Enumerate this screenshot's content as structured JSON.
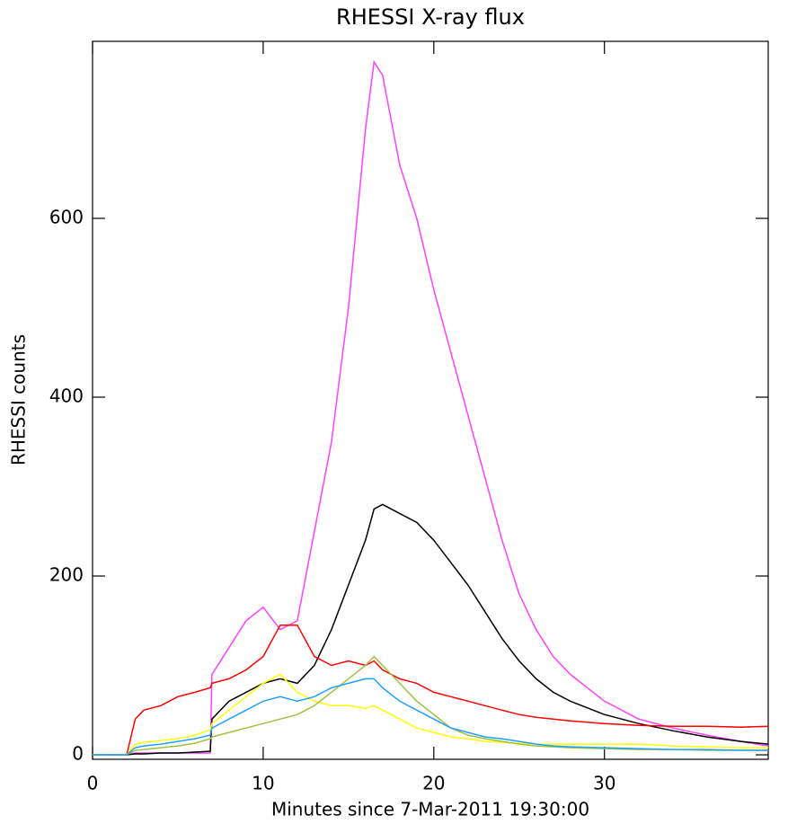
{
  "chart_data": {
    "type": "line",
    "title": "RHESSI X-ray flux",
    "x_label": "Minutes since 7-Mar-2011 19:30:00",
    "y_label": "RHESSI counts",
    "xlim": [
      0,
      39.6
    ],
    "ylim": [
      -5,
      798
    ],
    "xticks": [
      0,
      10,
      20,
      30
    ],
    "yticks": [
      0,
      200,
      400,
      600
    ],
    "x": [
      0,
      1,
      2,
      2.5,
      3,
      4,
      5,
      6,
      6.9,
      7,
      8,
      9,
      10,
      11,
      12,
      13,
      14,
      15,
      16,
      16.5,
      17,
      18,
      19,
      20,
      21,
      22,
      23,
      24,
      25,
      26,
      27,
      28,
      30,
      32,
      34,
      36,
      38,
      39.6
    ],
    "series": [
      {
        "color": "#ff40ff",
        "values": [
          0,
          0,
          0,
          2,
          2,
          2,
          2,
          2,
          2,
          90,
          120,
          150,
          165,
          140,
          150,
          250,
          350,
          500,
          700,
          775,
          760,
          660,
          600,
          520,
          450,
          380,
          310,
          240,
          180,
          140,
          110,
          90,
          60,
          40,
          30,
          22,
          15,
          10
        ]
      },
      {
        "color": "#000000",
        "values": [
          0,
          0,
          0,
          1,
          1,
          2,
          2,
          3,
          4,
          40,
          60,
          70,
          80,
          85,
          80,
          100,
          140,
          190,
          240,
          275,
          280,
          270,
          260,
          240,
          215,
          190,
          160,
          130,
          105,
          85,
          70,
          60,
          45,
          35,
          27,
          20,
          15,
          12
        ]
      },
      {
        "color": "#ff0000",
        "values": [
          0,
          0,
          0,
          40,
          50,
          55,
          65,
          70,
          75,
          80,
          85,
          95,
          110,
          145,
          145,
          110,
          100,
          105,
          100,
          105,
          95,
          85,
          80,
          70,
          65,
          60,
          55,
          50,
          45,
          42,
          40,
          38,
          35,
          33,
          32,
          32,
          31,
          32
        ]
      },
      {
        "color": "#ffff00",
        "values": [
          0,
          0,
          0,
          12,
          14,
          16,
          18,
          22,
          28,
          35,
          50,
          65,
          80,
          90,
          70,
          60,
          55,
          55,
          52,
          55,
          50,
          40,
          30,
          25,
          20,
          18,
          15,
          14,
          13,
          12,
          12,
          12,
          12,
          12,
          10,
          9,
          8,
          8
        ]
      },
      {
        "color": "#a0c040",
        "values": [
          0,
          0,
          0,
          5,
          6,
          8,
          10,
          13,
          18,
          20,
          25,
          30,
          35,
          40,
          45,
          55,
          70,
          85,
          100,
          110,
          100,
          80,
          60,
          45,
          30,
          22,
          18,
          15,
          12,
          10,
          9,
          8,
          7,
          6,
          6,
          5,
          5,
          5
        ]
      },
      {
        "color": "#20a0ff",
        "values": [
          0,
          0,
          0,
          8,
          10,
          12,
          15,
          18,
          22,
          30,
          40,
          50,
          60,
          65,
          60,
          65,
          75,
          80,
          85,
          85,
          75,
          60,
          50,
          40,
          30,
          25,
          20,
          18,
          15,
          12,
          10,
          9,
          8,
          7,
          6,
          6,
          5,
          5
        ]
      }
    ]
  }
}
